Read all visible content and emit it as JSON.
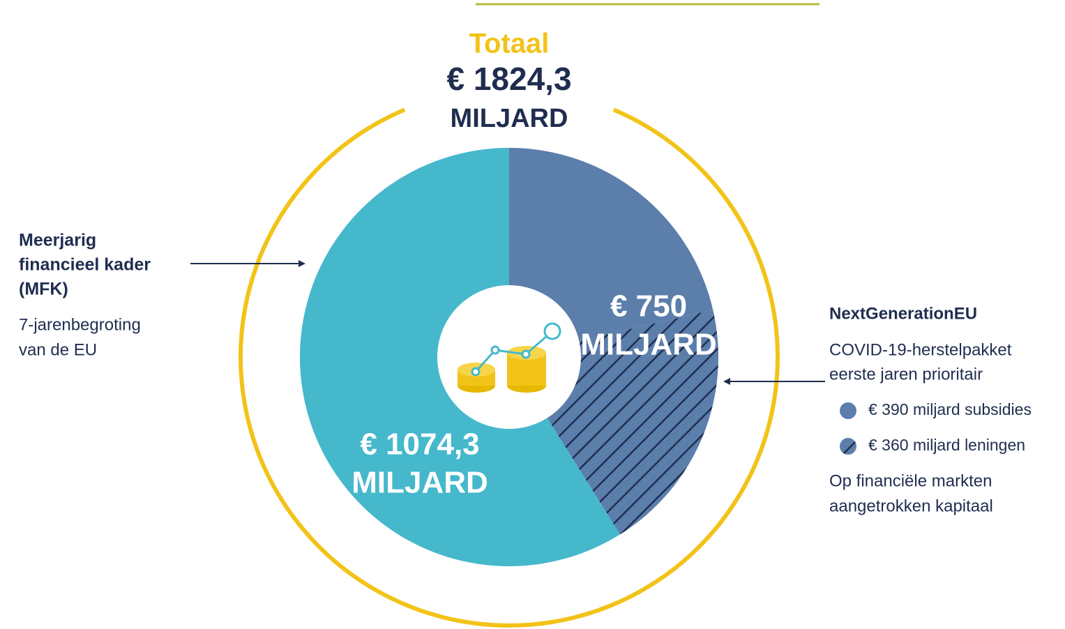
{
  "chart_data": {
    "type": "donut",
    "title": "Totaal",
    "total_label": "€ 1824,3",
    "unit": "MILJARD",
    "categories": [
      "€ 390 miljard subsidies",
      "€ 360 miljard leningen",
      null
    ],
    "values": [
      390,
      360,
      1074.3
    ],
    "value_labels": [
      null,
      null,
      "€ 1074,3"
    ],
    "colors": [
      "#5b7eab",
      "#5b7eab",
      "#45b8cc"
    ],
    "hatch": [
      false,
      true,
      false
    ],
    "mfk": {
      "title": [
        "Meerjarig",
        "financieel kader",
        "(MFK)"
      ],
      "description": [
        "7-jarenbegroting",
        "van de EU"
      ]
    },
    "ngeu": {
      "label": "€ 750",
      "title": "NextGenerationEU",
      "description": [
        "COVID-19-herstelpakket",
        "eerste jaren prioritair"
      ],
      "note": [
        "Op financiële markten",
        "aangetrokken kapitaal"
      ]
    }
  }
}
